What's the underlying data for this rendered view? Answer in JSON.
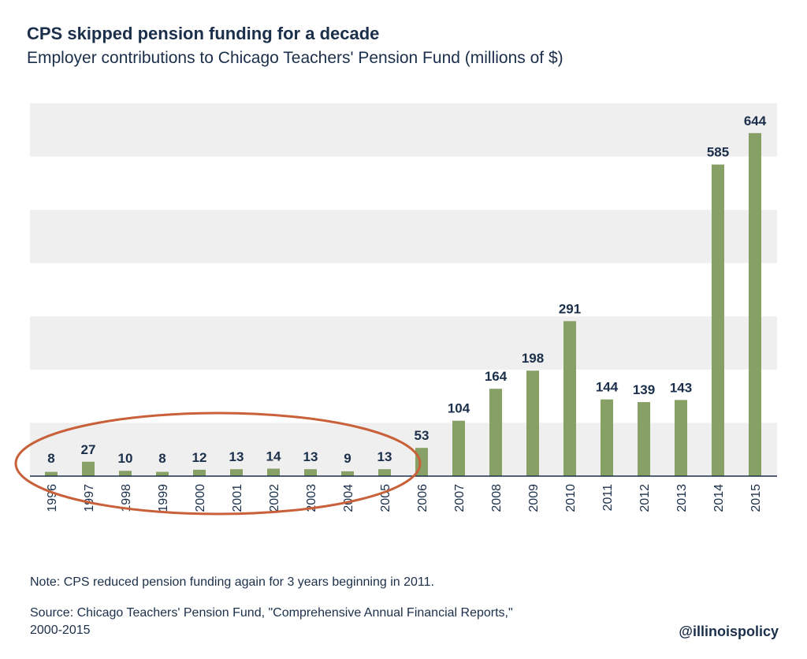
{
  "chart_data": {
    "type": "bar",
    "title": "CPS skipped pension funding for a decade",
    "subtitle": "Employer contributions to Chicago Teachers' Pension Fund (millions of $)",
    "categories": [
      "1996",
      "1997",
      "1998",
      "1999",
      "2000",
      "2001",
      "2002",
      "2003",
      "2004",
      "2005",
      "2006",
      "2007",
      "2008",
      "2009",
      "2010",
      "2011",
      "2012",
      "2013",
      "2014",
      "2015"
    ],
    "values": [
      8,
      27,
      10,
      8,
      12,
      13,
      14,
      13,
      9,
      13,
      53,
      104,
      164,
      198,
      291,
      144,
      139,
      143,
      585,
      644
    ],
    "ylim": [
      0,
      700
    ],
    "grid_step": 100,
    "xlabel": "",
    "ylabel": "",
    "highlight": {
      "from": "1996",
      "to": "2005"
    }
  },
  "note": "Note: CPS reduced pension funding again for 3 years beginning in 2011.",
  "source_line1": "Source: Chicago Teachers' Pension Fund, \"Comprehensive Annual Financial Reports,\"",
  "source_line2": "2000-2015",
  "handle": "@illinoispolicy",
  "colors": {
    "bar": "#87a065",
    "band": "#efefef",
    "axis": "#1b2f4a",
    "text": "#1b2f4a",
    "highlight": "#c8603a"
  }
}
